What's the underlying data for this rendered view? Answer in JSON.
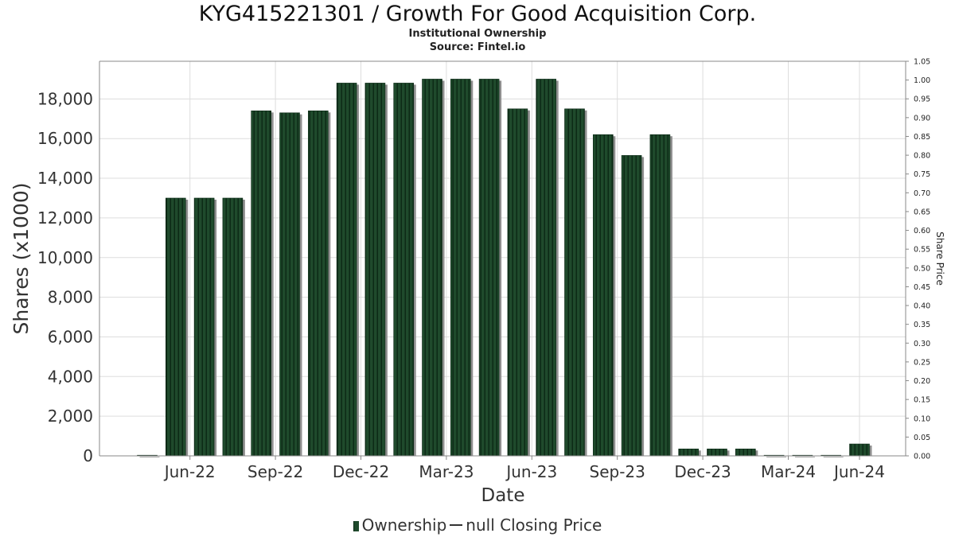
{
  "header": {
    "title": "KYG415221301 / Growth For Good Acquisition Corp.",
    "subtitle1": "Institutional Ownership",
    "subtitle2": "Source: Fintel.io"
  },
  "legend": {
    "ownership": "Ownership",
    "price": "null Closing Price"
  },
  "colors": {
    "bar": "#1f4a2c",
    "bar_dark": "#0c2a16",
    "bar_shadow": "#8f8f8f",
    "grid": "#dddddd",
    "axis": "#888888"
  },
  "chart_data": {
    "type": "bar",
    "xlabel": "Date",
    "ylabel": "Shares (x1000)",
    "y2label": "Share Price",
    "ylim": [
      0,
      19900
    ],
    "y2lim": [
      0,
      1.05
    ],
    "yticks": [
      0,
      2000,
      4000,
      6000,
      8000,
      10000,
      12000,
      14000,
      16000,
      18000
    ],
    "ytick_labels": [
      "0",
      "2,000",
      "4,000",
      "6,000",
      "8,000",
      "10,000",
      "12,000",
      "14,000",
      "16,000",
      "18,000"
    ],
    "y2ticks": [
      "0.00",
      "0.05",
      "0.10",
      "0.15",
      "0.20",
      "0.25",
      "0.30",
      "0.35",
      "0.40",
      "0.45",
      "0.50",
      "0.55",
      "0.60",
      "0.65",
      "0.70",
      "0.75",
      "0.80",
      "0.85",
      "0.90",
      "0.95",
      "1.00",
      "1.05"
    ],
    "xtick_labels": [
      "Jun-22",
      "Sep-22",
      "Dec-22",
      "Mar-23",
      "Jun-23",
      "Sep-23",
      "Dec-23",
      "Mar-24",
      "Jun-24"
    ],
    "grid": true,
    "legend_position": "bottom",
    "series": [
      {
        "name": "Ownership",
        "values": [
          0,
          13000,
          13000,
          13000,
          17400,
          17300,
          17400,
          18800,
          18800,
          18800,
          19000,
          19000,
          19000,
          17500,
          19000,
          17500,
          16200,
          15150,
          16200,
          350,
          350,
          350,
          0,
          0,
          0,
          600
        ]
      },
      {
        "name": "null Closing Price",
        "values": []
      }
    ]
  }
}
